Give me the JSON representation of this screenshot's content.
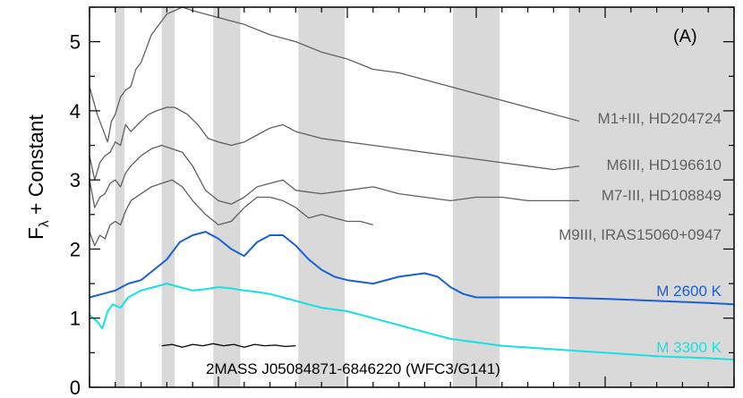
{
  "chart_data": {
    "type": "line",
    "panel_label": "(A)",
    "ylabel_main": "F",
    "ylabel_sub": "λ",
    "ylabel_rest": " + Constant",
    "xlabel": "",
    "ylim": [
      0,
      5.5
    ],
    "yticks": [
      "0",
      "1",
      "2",
      "3",
      "4",
      "5"
    ],
    "grid": false,
    "shaded_regions_frac": [
      [
        0.1,
        0.135
      ],
      [
        0.28,
        0.33
      ],
      [
        0.48,
        0.585
      ],
      [
        0.81,
        0.99
      ],
      [
        1.41,
        1.59
      ],
      [
        1.86,
        2.5
      ]
    ],
    "series": [
      {
        "name": "M1+III, HD204724",
        "color": "#606060",
        "points": [
          [
            0.0,
            4.35
          ],
          [
            0.03,
            3.95
          ],
          [
            0.05,
            3.75
          ],
          [
            0.07,
            3.55
          ],
          [
            0.085,
            3.85
          ],
          [
            0.1,
            3.95
          ],
          [
            0.12,
            4.2
          ],
          [
            0.14,
            4.3
          ],
          [
            0.16,
            4.35
          ],
          [
            0.18,
            4.6
          ],
          [
            0.2,
            4.7
          ],
          [
            0.22,
            4.9
          ],
          [
            0.24,
            5.1
          ],
          [
            0.26,
            5.2
          ],
          [
            0.28,
            5.3
          ],
          [
            0.3,
            5.4
          ],
          [
            0.33,
            5.45
          ],
          [
            0.36,
            5.5
          ],
          [
            0.4,
            5.45
          ],
          [
            0.45,
            5.4
          ],
          [
            0.5,
            5.35
          ],
          [
            0.55,
            5.3
          ],
          [
            0.6,
            5.25
          ],
          [
            0.7,
            5.1
          ],
          [
            0.8,
            5.0
          ],
          [
            0.9,
            4.85
          ],
          [
            1.0,
            4.75
          ],
          [
            1.1,
            4.6
          ],
          [
            1.2,
            4.55
          ],
          [
            1.3,
            4.45
          ],
          [
            1.4,
            4.35
          ],
          [
            1.5,
            4.25
          ],
          [
            1.6,
            4.15
          ],
          [
            1.7,
            4.05
          ],
          [
            1.8,
            3.95
          ],
          [
            1.9,
            3.85
          ]
        ]
      },
      {
        "name": "M6III, HD196610",
        "color": "#606060",
        "points": [
          [
            0.0,
            3.35
          ],
          [
            0.02,
            3.0
          ],
          [
            0.04,
            3.25
          ],
          [
            0.06,
            3.35
          ],
          [
            0.08,
            3.4
          ],
          [
            0.1,
            3.55
          ],
          [
            0.12,
            3.5
          ],
          [
            0.14,
            3.8
          ],
          [
            0.16,
            3.7
          ],
          [
            0.2,
            3.85
          ],
          [
            0.23,
            3.95
          ],
          [
            0.26,
            4.0
          ],
          [
            0.3,
            4.05
          ],
          [
            0.33,
            4.05
          ],
          [
            0.38,
            3.95
          ],
          [
            0.42,
            3.8
          ],
          [
            0.46,
            3.6
          ],
          [
            0.5,
            3.55
          ],
          [
            0.55,
            3.5
          ],
          [
            0.6,
            3.55
          ],
          [
            0.65,
            3.65
          ],
          [
            0.7,
            3.75
          ],
          [
            0.75,
            3.8
          ],
          [
            0.8,
            3.7
          ],
          [
            0.9,
            3.6
          ],
          [
            1.0,
            3.55
          ],
          [
            1.1,
            3.5
          ],
          [
            1.2,
            3.45
          ],
          [
            1.3,
            3.4
          ],
          [
            1.4,
            3.35
          ],
          [
            1.5,
            3.3
          ],
          [
            1.6,
            3.25
          ],
          [
            1.7,
            3.2
          ],
          [
            1.8,
            3.15
          ],
          [
            1.9,
            3.2
          ]
        ]
      },
      {
        "name": "M7-III, HD108849",
        "color": "#606060",
        "points": [
          [
            0.0,
            3.0
          ],
          [
            0.02,
            2.6
          ],
          [
            0.04,
            2.75
          ],
          [
            0.06,
            2.8
          ],
          [
            0.08,
            2.95
          ],
          [
            0.1,
            3.0
          ],
          [
            0.12,
            2.9
          ],
          [
            0.14,
            3.1
          ],
          [
            0.16,
            3.2
          ],
          [
            0.2,
            3.35
          ],
          [
            0.24,
            3.45
          ],
          [
            0.28,
            3.5
          ],
          [
            0.32,
            3.45
          ],
          [
            0.36,
            3.4
          ],
          [
            0.4,
            3.2
          ],
          [
            0.45,
            2.85
          ],
          [
            0.5,
            2.7
          ],
          [
            0.55,
            2.65
          ],
          [
            0.6,
            2.75
          ],
          [
            0.65,
            2.9
          ],
          [
            0.7,
            2.95
          ],
          [
            0.75,
            3.0
          ],
          [
            0.8,
            2.85
          ],
          [
            0.9,
            2.8
          ],
          [
            1.0,
            2.85
          ],
          [
            1.1,
            2.9
          ],
          [
            1.2,
            2.8
          ],
          [
            1.3,
            2.75
          ],
          [
            1.4,
            2.7
          ],
          [
            1.5,
            2.75
          ],
          [
            1.6,
            2.75
          ],
          [
            1.7,
            2.7
          ],
          [
            1.8,
            2.7
          ],
          [
            1.9,
            2.7
          ]
        ]
      },
      {
        "name": "M9III, IRAS15060+0947",
        "color": "#606060",
        "points": [
          [
            0.0,
            2.25
          ],
          [
            0.02,
            2.05
          ],
          [
            0.04,
            2.2
          ],
          [
            0.06,
            2.15
          ],
          [
            0.08,
            2.35
          ],
          [
            0.1,
            2.4
          ],
          [
            0.12,
            2.35
          ],
          [
            0.14,
            2.55
          ],
          [
            0.16,
            2.7
          ],
          [
            0.2,
            2.8
          ],
          [
            0.24,
            2.9
          ],
          [
            0.28,
            2.95
          ],
          [
            0.32,
            3.0
          ],
          [
            0.36,
            2.9
          ],
          [
            0.4,
            2.7
          ],
          [
            0.45,
            2.5
          ],
          [
            0.5,
            2.35
          ],
          [
            0.55,
            2.4
          ],
          [
            0.6,
            2.6
          ],
          [
            0.65,
            2.75
          ],
          [
            0.7,
            2.75
          ],
          [
            0.75,
            2.7
          ],
          [
            0.8,
            2.6
          ],
          [
            0.85,
            2.45
          ],
          [
            0.9,
            2.5
          ],
          [
            0.95,
            2.45
          ],
          [
            1.0,
            2.4
          ],
          [
            1.05,
            2.4
          ],
          [
            1.1,
            2.35
          ]
        ]
      },
      {
        "name": "M 2600 K",
        "color": "#1a5fd6",
        "points": [
          [
            0.0,
            1.3
          ],
          [
            0.05,
            1.35
          ],
          [
            0.1,
            1.4
          ],
          [
            0.15,
            1.5
          ],
          [
            0.2,
            1.55
          ],
          [
            0.25,
            1.7
          ],
          [
            0.3,
            1.85
          ],
          [
            0.35,
            2.1
          ],
          [
            0.4,
            2.2
          ],
          [
            0.45,
            2.25
          ],
          [
            0.5,
            2.15
          ],
          [
            0.55,
            2.0
          ],
          [
            0.6,
            1.9
          ],
          [
            0.65,
            2.1
          ],
          [
            0.7,
            2.2
          ],
          [
            0.75,
            2.2
          ],
          [
            0.8,
            2.05
          ],
          [
            0.85,
            1.85
          ],
          [
            0.9,
            1.7
          ],
          [
            0.95,
            1.6
          ],
          [
            1.0,
            1.55
          ],
          [
            1.1,
            1.5
          ],
          [
            1.2,
            1.6
          ],
          [
            1.3,
            1.65
          ],
          [
            1.35,
            1.6
          ],
          [
            1.4,
            1.45
          ],
          [
            1.45,
            1.35
          ],
          [
            1.5,
            1.3
          ],
          [
            1.6,
            1.3
          ],
          [
            1.8,
            1.3
          ],
          [
            2.0,
            1.28
          ],
          [
            2.2,
            1.25
          ],
          [
            2.4,
            1.22
          ],
          [
            2.5,
            1.2
          ]
        ]
      },
      {
        "name": "M 3300 K",
        "color": "#19e0e0",
        "points": [
          [
            0.0,
            1.05
          ],
          [
            0.03,
            0.95
          ],
          [
            0.05,
            0.85
          ],
          [
            0.07,
            1.1
          ],
          [
            0.09,
            1.2
          ],
          [
            0.12,
            1.15
          ],
          [
            0.15,
            1.3
          ],
          [
            0.2,
            1.4
          ],
          [
            0.25,
            1.45
          ],
          [
            0.3,
            1.5
          ],
          [
            0.35,
            1.45
          ],
          [
            0.4,
            1.4
          ],
          [
            0.45,
            1.42
          ],
          [
            0.5,
            1.45
          ],
          [
            0.55,
            1.43
          ],
          [
            0.6,
            1.4
          ],
          [
            0.65,
            1.38
          ],
          [
            0.7,
            1.35
          ],
          [
            0.75,
            1.3
          ],
          [
            0.8,
            1.25
          ],
          [
            0.85,
            1.2
          ],
          [
            0.9,
            1.15
          ],
          [
            1.0,
            1.1
          ],
          [
            1.1,
            1.0
          ],
          [
            1.2,
            0.9
          ],
          [
            1.3,
            0.8
          ],
          [
            1.4,
            0.7
          ],
          [
            1.5,
            0.65
          ],
          [
            1.6,
            0.6
          ],
          [
            1.8,
            0.55
          ],
          [
            2.0,
            0.5
          ],
          [
            2.2,
            0.45
          ],
          [
            2.4,
            0.42
          ],
          [
            2.5,
            0.4
          ]
        ]
      },
      {
        "name": "2MASS J05084871-6846220 (WFC3/G141)",
        "color": "#000000",
        "points": [
          [
            0.28,
            0.6
          ],
          [
            0.32,
            0.62
          ],
          [
            0.36,
            0.58
          ],
          [
            0.4,
            0.62
          ],
          [
            0.44,
            0.6
          ],
          [
            0.48,
            0.63
          ],
          [
            0.52,
            0.6
          ],
          [
            0.56,
            0.62
          ],
          [
            0.6,
            0.58
          ],
          [
            0.64,
            0.62
          ],
          [
            0.68,
            0.6
          ],
          [
            0.72,
            0.61
          ],
          [
            0.76,
            0.59
          ],
          [
            0.8,
            0.6
          ]
        ]
      }
    ],
    "labels": [
      {
        "text": "M1+III, HD204724",
        "color": "#606060"
      },
      {
        "text": "M6III, HD196610",
        "color": "#606060"
      },
      {
        "text": "M7-III, HD108849",
        "color": "#606060"
      },
      {
        "text": "M9III, IRAS15060+0947",
        "color": "#606060"
      },
      {
        "text": "M 2600 K",
        "color": "#1a5fd6"
      },
      {
        "text": "M 3300 K",
        "color": "#19e0e0"
      },
      {
        "text": "2MASS J05084871-6846220 (WFC3/G141)",
        "color": "#000000"
      }
    ]
  }
}
